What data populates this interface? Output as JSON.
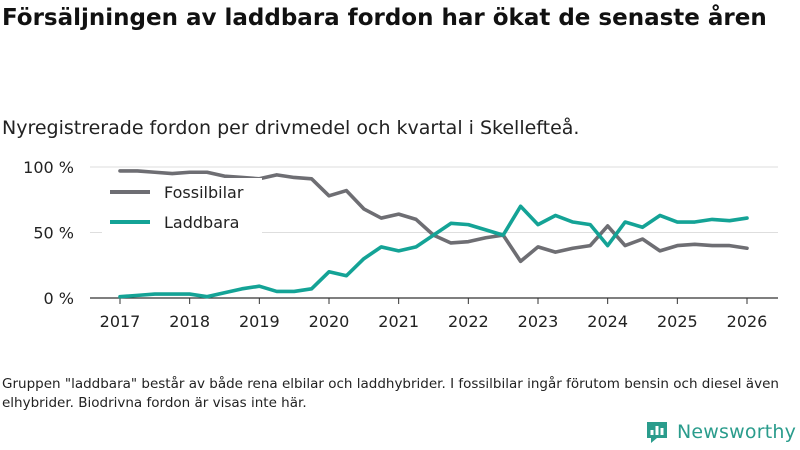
{
  "title": "Försäljningen av laddbara fordon har ökat de senaste åren",
  "subtitle": "Nyregistrerade fordon per drivmedel och kvartal i Skellefteå.",
  "footnote": "Gruppen \"laddbara\" består av både rena elbilar och laddhybrider. I fossilbilar ingår förutom bensin och diesel även elhybrider. Biodrivna fordon är visas inte här.",
  "brand": {
    "name": "Newsworthy",
    "logo_icon": "bar-chart-bubble-icon",
    "color": "#2a9c8c"
  },
  "chart_data": {
    "type": "line",
    "title": "Försäljningen av laddbara fordon har ökat de senaste åren",
    "subtitle": "Nyregistrerade fordon per drivmedel och kvartal i Skellefteå.",
    "xlabel": "",
    "ylabel": "",
    "xlim": [
      2017,
      2026
    ],
    "ylim": [
      0,
      100
    ],
    "x_ticks": [
      2017,
      2018,
      2019,
      2020,
      2021,
      2022,
      2023,
      2024,
      2025,
      2026
    ],
    "x_tick_labels": [
      "2017",
      "2018",
      "2019",
      "2020",
      "2021",
      "2022",
      "2023",
      "2024",
      "2025",
      "2026"
    ],
    "y_ticks": [
      0,
      50,
      100
    ],
    "y_tick_labels": [
      "0 %",
      "50 %",
      "100 %"
    ],
    "grid": true,
    "legend_position": "top-left",
    "x": [
      2017.0,
      2017.25,
      2017.5,
      2017.75,
      2018.0,
      2018.25,
      2018.5,
      2018.75,
      2019.0,
      2019.25,
      2019.5,
      2019.75,
      2020.0,
      2020.25,
      2020.5,
      2020.75,
      2021.0,
      2021.25,
      2021.5,
      2021.75,
      2022.0,
      2022.25,
      2022.5,
      2022.75,
      2023.0,
      2023.25,
      2023.5,
      2023.75,
      2024.0,
      2024.25,
      2024.5,
      2024.75,
      2025.0,
      2025.25,
      2025.5,
      2025.75,
      2026.0
    ],
    "series": [
      {
        "name": "Fossilbilar",
        "color": "#6e6e73",
        "values": [
          97,
          97,
          96,
          95,
          96,
          96,
          93,
          92,
          91,
          94,
          92,
          91,
          78,
          82,
          68,
          61,
          64,
          60,
          48,
          42,
          43,
          46,
          48,
          28,
          39,
          35,
          38,
          40,
          55,
          40,
          45,
          36,
          40,
          41,
          40,
          40,
          38
        ]
      },
      {
        "name": "Laddbara",
        "color": "#14a396",
        "values": [
          1,
          2,
          3,
          3,
          3,
          1,
          4,
          7,
          9,
          5,
          5,
          7,
          20,
          17,
          30,
          39,
          36,
          39,
          48,
          57,
          56,
          52,
          48,
          70,
          56,
          63,
          58,
          56,
          40,
          58,
          54,
          63,
          58,
          58,
          60,
          59,
          61
        ]
      }
    ]
  }
}
